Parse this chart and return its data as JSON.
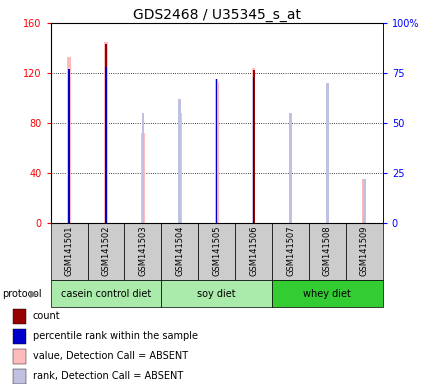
{
  "title": "GDS2468 / U35345_s_at",
  "samples": [
    "GSM141501",
    "GSM141502",
    "GSM141503",
    "GSM141504",
    "GSM141505",
    "GSM141506",
    "GSM141507",
    "GSM141508",
    "GSM141509"
  ],
  "count_values": [
    0,
    143,
    0,
    0,
    0,
    122,
    0,
    0,
    0
  ],
  "percentile_values": [
    77,
    78,
    0,
    0,
    72,
    73,
    0,
    0,
    0
  ],
  "absent_value": [
    133,
    145,
    72,
    88,
    113,
    124,
    76,
    98,
    35
  ],
  "absent_rank": [
    77,
    78,
    55,
    62,
    72,
    73,
    55,
    70,
    22
  ],
  "ylim": [
    0,
    160
  ],
  "yticks": [
    0,
    40,
    80,
    120,
    160
  ],
  "ytick_labels": [
    "0",
    "40",
    "80",
    "120",
    "160"
  ],
  "y2ticks": [
    0,
    25,
    50,
    75,
    100
  ],
  "y2tick_labels": [
    "0",
    "25",
    "50",
    "75",
    "100%"
  ],
  "protocols": [
    {
      "label": "casein control diet",
      "start": 0,
      "end": 3,
      "color": "#aaeaaa"
    },
    {
      "label": "soy diet",
      "start": 3,
      "end": 6,
      "color": "#aaeaaa"
    },
    {
      "label": "whey diet",
      "start": 6,
      "end": 9,
      "color": "#33cc33"
    }
  ],
  "color_count": "#990000",
  "color_percentile": "#0000cc",
  "color_absent_value": "#ffbbbb",
  "color_absent_rank": "#c0c0e0",
  "legend_items": [
    {
      "color": "#990000",
      "label": "count"
    },
    {
      "color": "#0000cc",
      "label": "percentile rank within the sample"
    },
    {
      "color": "#ffbbbb",
      "label": "value, Detection Call = ABSENT"
    },
    {
      "color": "#c0c0e0",
      "label": "rank, Detection Call = ABSENT"
    }
  ],
  "protocol_label": "protocol",
  "background_sample": "#cccccc",
  "title_fontsize": 10,
  "tick_fontsize": 7,
  "sample_fontsize": 6,
  "legend_fontsize": 7,
  "proto_fontsize": 7
}
